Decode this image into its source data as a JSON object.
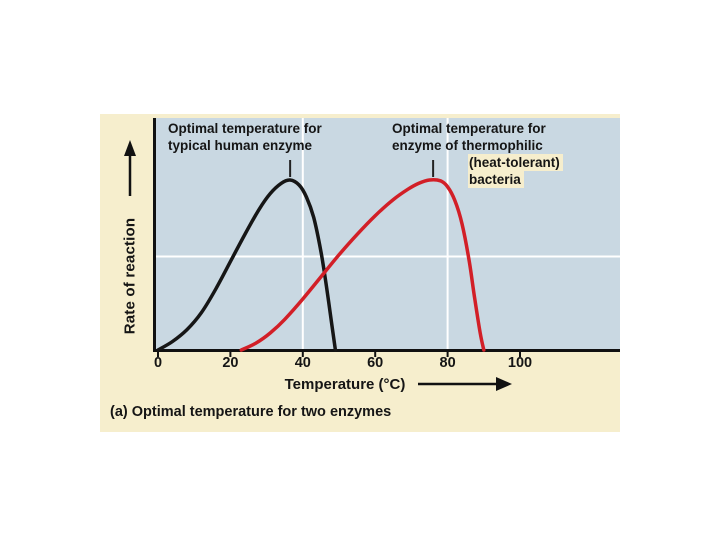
{
  "figure": {
    "caption": "(a) Optimal temperature for two enzymes",
    "colors": {
      "panel_bg": "#f6eecd",
      "plot_bg": "#c9d8e2",
      "grid": "#ffffff",
      "axis": "#111111",
      "text": "#151515",
      "human_curve": "#161616",
      "thermophile_curve": "#d21f27"
    }
  },
  "chart_data": {
    "type": "line",
    "title": "",
    "xlabel": "Temperature (°C)",
    "ylabel": "Rate of reaction",
    "x_ticks": [
      0,
      20,
      40,
      60,
      80,
      100
    ],
    "xlim": [
      0,
      127
    ],
    "ylim": [
      0,
      1.35
    ],
    "grid": true,
    "gridlines": {
      "x_temps": [
        40,
        80
      ],
      "y_rates": [
        0.55
      ]
    },
    "series": [
      {
        "name": "Typical human enzyme",
        "color": "#161616",
        "points": [
          [
            0,
            0
          ],
          [
            4,
            0.05
          ],
          [
            8,
            0.12
          ],
          [
            12,
            0.22
          ],
          [
            16,
            0.36
          ],
          [
            20,
            0.52
          ],
          [
            24,
            0.68
          ],
          [
            28,
            0.83
          ],
          [
            31,
            0.92
          ],
          [
            34,
            0.98
          ],
          [
            36.5,
            1.0
          ],
          [
            39,
            0.97
          ],
          [
            41,
            0.9
          ],
          [
            43,
            0.78
          ],
          [
            45,
            0.58
          ],
          [
            46.5,
            0.38
          ],
          [
            48,
            0.15
          ],
          [
            49,
            0
          ]
        ]
      },
      {
        "name": "Thermophilic (heat-tolerant) bacteria enzyme",
        "color": "#d21f27",
        "points": [
          [
            23,
            0
          ],
          [
            27,
            0.04
          ],
          [
            31,
            0.1
          ],
          [
            35,
            0.18
          ],
          [
            40,
            0.3
          ],
          [
            45,
            0.43
          ],
          [
            50,
            0.56
          ],
          [
            55,
            0.68
          ],
          [
            60,
            0.79
          ],
          [
            65,
            0.885
          ],
          [
            69,
            0.945
          ],
          [
            72,
            0.98
          ],
          [
            75,
            1.0
          ],
          [
            78,
            0.995
          ],
          [
            80,
            0.96
          ],
          [
            82,
            0.88
          ],
          [
            84,
            0.74
          ],
          [
            86,
            0.52
          ],
          [
            87.5,
            0.3
          ],
          [
            89,
            0.1
          ],
          [
            90,
            0
          ]
        ]
      }
    ],
    "annotations": [
      {
        "text_lines": [
          "Optimal temperature for",
          "typical human enzyme"
        ],
        "pointer_temp": 36.5
      },
      {
        "text_lines": [
          "Optimal temperature for",
          "enzyme of thermophilic",
          "(heat-tolerant)",
          "bacteria"
        ],
        "pointer_temp": 76
      }
    ]
  }
}
